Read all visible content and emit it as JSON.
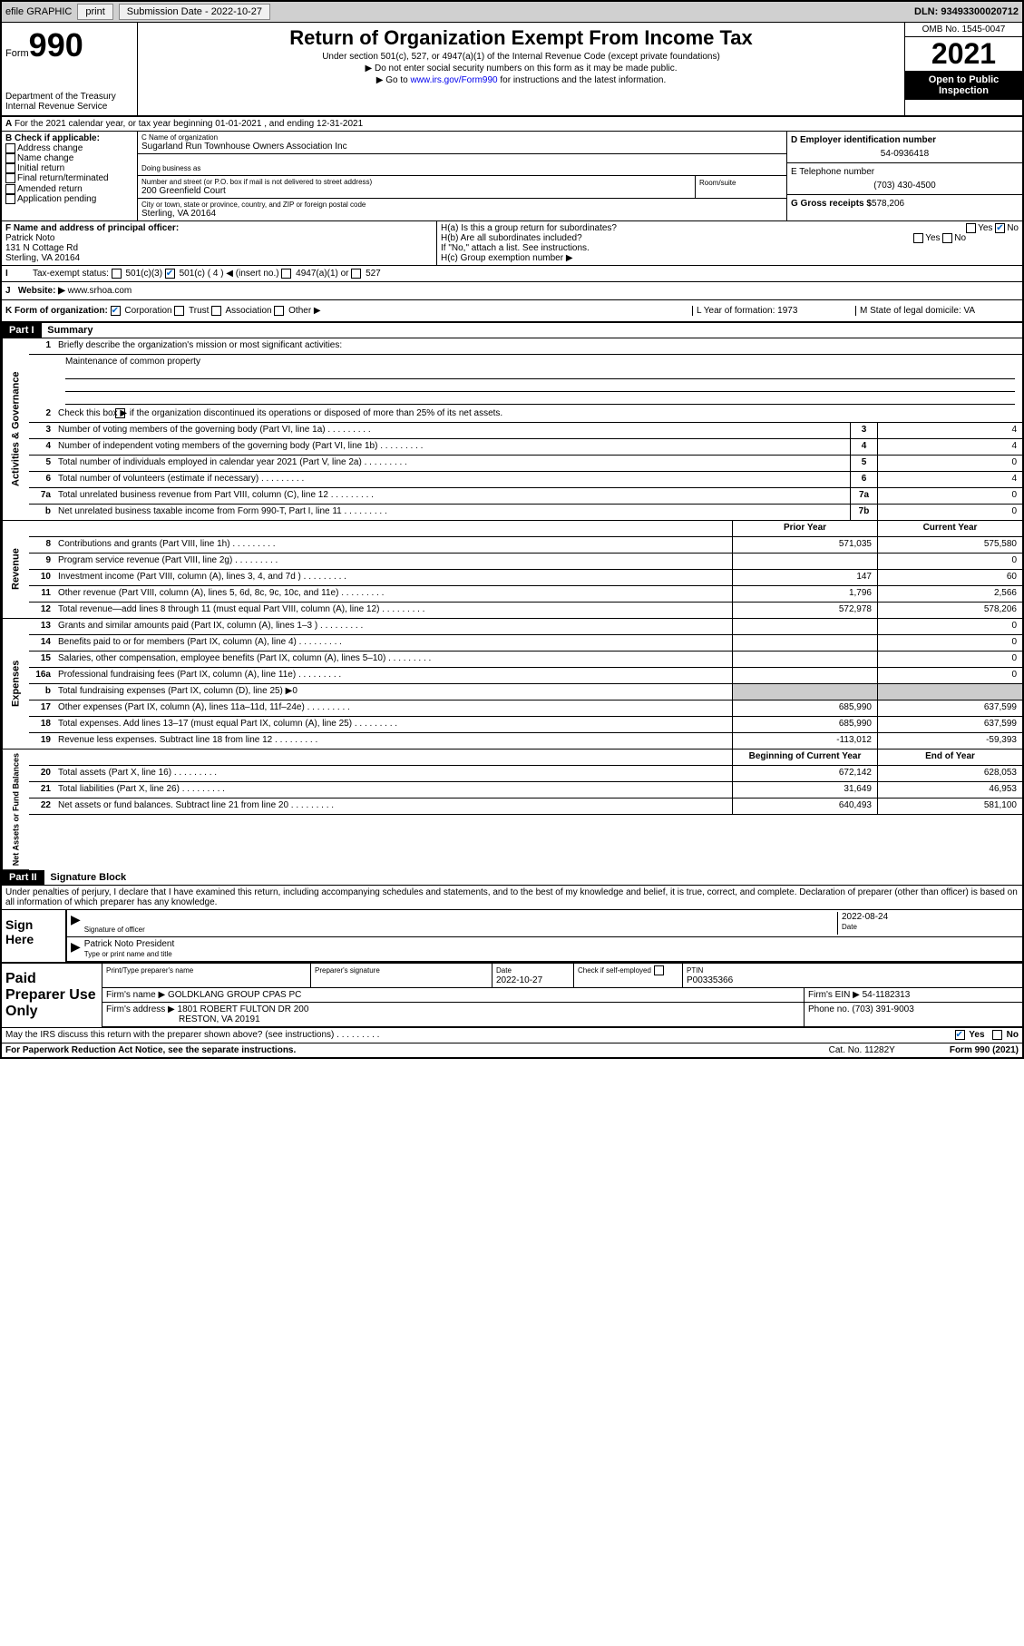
{
  "topbar": {
    "efile": "efile GRAPHIC",
    "print": "print",
    "sub_label": "Submission Date - 2022-10-27",
    "dln": "DLN: 93493300020712"
  },
  "header": {
    "form_word": "Form",
    "form_num": "990",
    "title": "Return of Organization Exempt From Income Tax",
    "sub1": "Under section 501(c), 527, or 4947(a)(1) of the Internal Revenue Code (except private foundations)",
    "sub2": "▶ Do not enter social security numbers on this form as it may be made public.",
    "sub3_pre": "▶ Go to ",
    "sub3_link": "www.irs.gov/Form990",
    "sub3_post": " for instructions and the latest information.",
    "dept": "Department of the Treasury",
    "irs": "Internal Revenue Service",
    "omb": "OMB No. 1545-0047",
    "year": "2021",
    "open": "Open to Public Inspection"
  },
  "row_a": {
    "text": "For the 2021 calendar year, or tax year beginning 01-01-2021   , and ending 12-31-2021"
  },
  "block_b": {
    "label": "B Check if applicable:",
    "opts": [
      "Address change",
      "Name change",
      "Initial return",
      "Final return/terminated",
      "Amended return",
      "Application pending"
    ],
    "c_label": "C Name of organization",
    "org_name": "Sugarland Run Townhouse Owners Association Inc",
    "dba_label": "Doing business as",
    "addr_label": "Number and street (or P.O. box if mail is not delivered to street address)",
    "addr": "200 Greenfield Court",
    "room_label": "Room/suite",
    "city_label": "City or town, state or province, country, and ZIP or foreign postal code",
    "city": "Sterling, VA  20164",
    "d_label": "D Employer identification number",
    "ein": "54-0936418",
    "e_label": "E Telephone number",
    "phone": "(703) 430-4500",
    "g_label": "G Gross receipts $",
    "gross": "578,206"
  },
  "block_f": {
    "f_label": "F  Name and address of principal officer:",
    "name": "Patrick Noto",
    "addr1": "131 N Cottage Rd",
    "addr2": "Sterling, VA  20164",
    "ha": "H(a)  Is this a group return for subordinates?",
    "hb": "H(b)  Are all subordinates included?",
    "hb_note": "If \"No,\" attach a list. See instructions.",
    "hc": "H(c)  Group exemption number ▶",
    "yes": "Yes",
    "no": "No"
  },
  "row_i": {
    "label": "Tax-exempt status:",
    "o1": "501(c)(3)",
    "o2": "501(c) ( 4 ) ◀ (insert no.)",
    "o3": "4947(a)(1) or",
    "o4": "527"
  },
  "row_j": {
    "label": "Website: ▶",
    "val": "www.srhoa.com"
  },
  "row_k": {
    "label": "K Form of organization:",
    "o1": "Corporation",
    "o2": "Trust",
    "o3": "Association",
    "o4": "Other ▶",
    "l": "L Year of formation: 1973",
    "m": "M State of legal domicile: VA"
  },
  "part1": {
    "hdr": "Part I",
    "title": "Summary",
    "tabs": {
      "gov": "Activities & Governance",
      "rev": "Revenue",
      "exp": "Expenses",
      "net": "Net Assets or Fund Balances"
    },
    "l1": "Briefly describe the organization's mission or most significant activities:",
    "l1v": "Maintenance of common property",
    "l2": "Check this box ▶         if the organization discontinued its operations or disposed of more than 25% of its net assets.",
    "prior_hdr": "Prior Year",
    "curr_hdr": "Current Year",
    "beg_hdr": "Beginning of Current Year",
    "end_hdr": "End of Year",
    "lines": [
      {
        "n": "3",
        "t": "Number of voting members of the governing body (Part VI, line 1a)",
        "sc": "3",
        "v": "4"
      },
      {
        "n": "4",
        "t": "Number of independent voting members of the governing body (Part VI, line 1b)",
        "sc": "4",
        "v": "4"
      },
      {
        "n": "5",
        "t": "Total number of individuals employed in calendar year 2021 (Part V, line 2a)",
        "sc": "5",
        "v": "0"
      },
      {
        "n": "6",
        "t": "Total number of volunteers (estimate if necessary)",
        "sc": "6",
        "v": "4"
      },
      {
        "n": "7a",
        "t": "Total unrelated business revenue from Part VIII, column (C), line 12",
        "sc": "7a",
        "v": "0"
      },
      {
        "n": "b",
        "t": "Net unrelated business taxable income from Form 990-T, Part I, line 11",
        "sc": "7b",
        "v": "0"
      }
    ],
    "rev": [
      {
        "n": "8",
        "t": "Contributions and grants (Part VIII, line 1h)",
        "p": "571,035",
        "c": "575,580"
      },
      {
        "n": "9",
        "t": "Program service revenue (Part VIII, line 2g)",
        "p": "",
        "c": "0"
      },
      {
        "n": "10",
        "t": "Investment income (Part VIII, column (A), lines 3, 4, and 7d )",
        "p": "147",
        "c": "60"
      },
      {
        "n": "11",
        "t": "Other revenue (Part VIII, column (A), lines 5, 6d, 8c, 9c, 10c, and 11e)",
        "p": "1,796",
        "c": "2,566"
      },
      {
        "n": "12",
        "t": "Total revenue—add lines 8 through 11 (must equal Part VIII, column (A), line 12)",
        "p": "572,978",
        "c": "578,206"
      }
    ],
    "exp": [
      {
        "n": "13",
        "t": "Grants and similar amounts paid (Part IX, column (A), lines 1–3 )",
        "p": "",
        "c": "0"
      },
      {
        "n": "14",
        "t": "Benefits paid to or for members (Part IX, column (A), line 4)",
        "p": "",
        "c": "0"
      },
      {
        "n": "15",
        "t": "Salaries, other compensation, employee benefits (Part IX, column (A), lines 5–10)",
        "p": "",
        "c": "0"
      },
      {
        "n": "16a",
        "t": "Professional fundraising fees (Part IX, column (A), line 11e)",
        "p": "",
        "c": "0"
      },
      {
        "n": "b",
        "t": "Total fundraising expenses (Part IX, column (D), line 25) ▶0",
        "shade": true
      },
      {
        "n": "17",
        "t": "Other expenses (Part IX, column (A), lines 11a–11d, 11f–24e)",
        "p": "685,990",
        "c": "637,599"
      },
      {
        "n": "18",
        "t": "Total expenses. Add lines 13–17 (must equal Part IX, column (A), line 25)",
        "p": "685,990",
        "c": "637,599"
      },
      {
        "n": "19",
        "t": "Revenue less expenses. Subtract line 18 from line 12",
        "p": "-113,012",
        "c": "-59,393"
      }
    ],
    "net": [
      {
        "n": "20",
        "t": "Total assets (Part X, line 16)",
        "p": "672,142",
        "c": "628,053"
      },
      {
        "n": "21",
        "t": "Total liabilities (Part X, line 26)",
        "p": "31,649",
        "c": "46,953"
      },
      {
        "n": "22",
        "t": "Net assets or fund balances. Subtract line 21 from line 20",
        "p": "640,493",
        "c": "581,100"
      }
    ]
  },
  "part2": {
    "hdr": "Part II",
    "title": "Signature Block",
    "decl": "Under penalties of perjury, I declare that I have examined this return, including accompanying schedules and statements, and to the best of my knowledge and belief, it is true, correct, and complete. Declaration of preparer (other than officer) is based on all information of which preparer has any knowledge.",
    "sign_here": "Sign Here",
    "sig_off": "Signature of officer",
    "date": "Date",
    "sig_date": "2022-08-24",
    "name_title": "Patrick Noto  President",
    "name_label": "Type or print name and title",
    "paid": "Paid Preparer Use Only",
    "prep_name_label": "Print/Type preparer's name",
    "prep_sig_label": "Preparer's signature",
    "prep_date_label": "Date",
    "prep_date": "2022-10-27",
    "check_if": "Check          if self-employed",
    "ptin_label": "PTIN",
    "ptin": "P00335366",
    "firm_name_label": "Firm's name     ▶",
    "firm_name": "GOLDKLANG GROUP CPAS PC",
    "firm_ein_label": "Firm's EIN ▶",
    "firm_ein": "54-1182313",
    "firm_addr_label": "Firm's address ▶",
    "firm_addr1": "1801 ROBERT FULTON DR 200",
    "firm_addr2": "RESTON, VA  20191",
    "phone_label": "Phone no.",
    "phone": "(703) 391-9003",
    "may": "May the IRS discuss this return with the preparer shown above? (see instructions)"
  },
  "footer": {
    "left": "For Paperwork Reduction Act Notice, see the separate instructions.",
    "mid": "Cat. No. 11282Y",
    "right": "Form 990 (2021)"
  }
}
